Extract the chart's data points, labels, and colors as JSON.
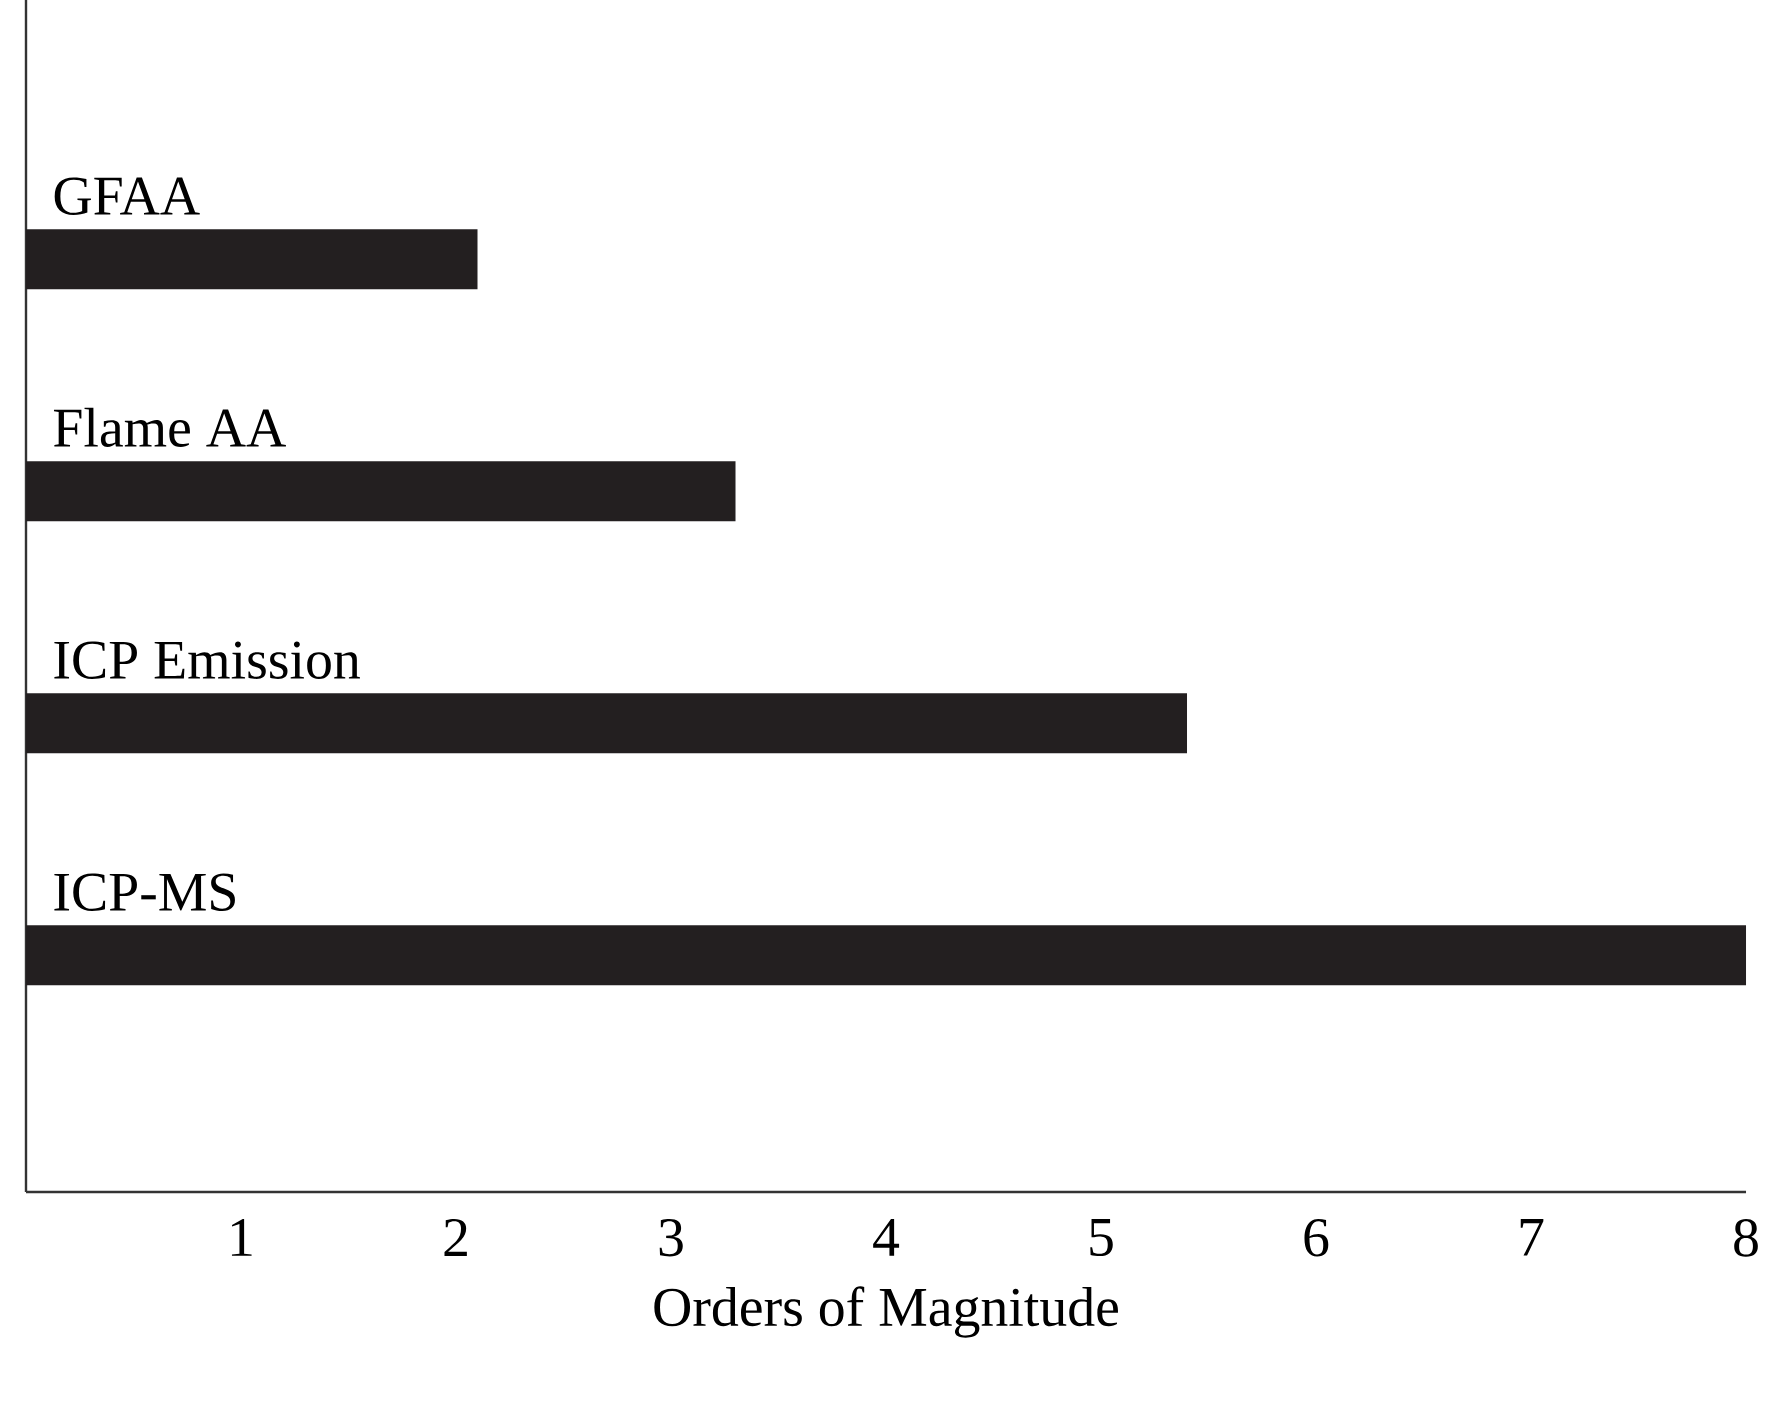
{
  "chart_data": {
    "type": "bar",
    "orientation": "horizontal",
    "categories": [
      "GFAA",
      "Flame AA",
      "ICP Emission",
      "ICP-MS"
    ],
    "values": [
      2.1,
      3.3,
      5.4,
      8
    ],
    "color": "#231f20",
    "xlabel": "Orders of Magnitude",
    "xlim": [
      0,
      8
    ],
    "xticks": [
      1,
      2,
      3,
      4,
      5,
      6,
      7,
      8
    ],
    "grid": false
  }
}
